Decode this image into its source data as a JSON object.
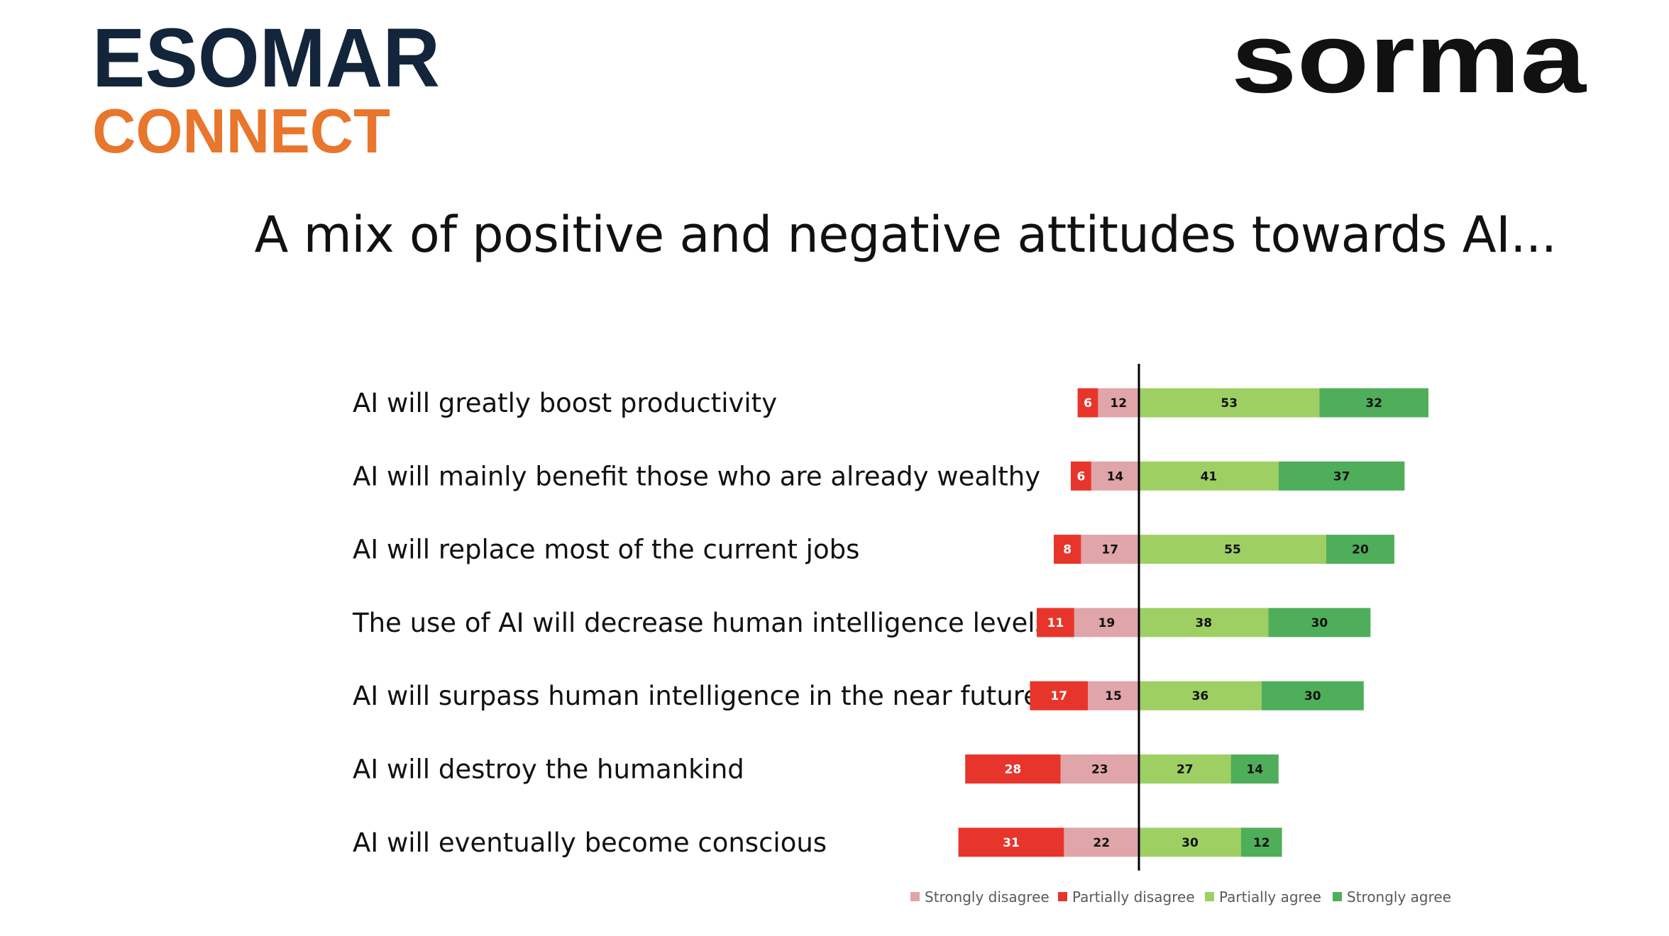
{
  "logos": {
    "left_line1": "ESOMAR",
    "left_line2": "CONNECT",
    "right": "sorma",
    "brand_navy": "#13253a",
    "brand_orange": "#e8762c"
  },
  "chart_data": {
    "type": "bar",
    "subtype": "diverging-stacked-horizontal",
    "title": "A mix of positive and negative attitudes towards AI...",
    "categories": [
      "AI will greatly boost productivity",
      "AI will mainly benefit those who are already wealthy",
      "AI will replace most of the current jobs",
      "The use of AI will decrease human intelligence levels",
      "AI will surpass human intelligence in the near future",
      "AI will destroy the humankind",
      "AI will eventually become conscious"
    ],
    "series": [
      {
        "name": "Strongly disagree",
        "color": "#e0a5a9",
        "side": "negative",
        "values": [
          12,
          14,
          17,
          19,
          15,
          23,
          22
        ]
      },
      {
        "name": "Partially disagree",
        "color": "#e8352b",
        "side": "negative",
        "values": [
          6,
          6,
          8,
          11,
          17,
          28,
          31
        ]
      },
      {
        "name": "Partially agree",
        "color": "#9ecf63",
        "side": "positive",
        "values": [
          53,
          41,
          55,
          38,
          36,
          27,
          30
        ]
      },
      {
        "name": "Strongly agree",
        "color": "#4fae5a",
        "side": "positive",
        "values": [
          32,
          37,
          20,
          30,
          30,
          14,
          12
        ]
      }
    ],
    "legend_position": "bottom-right",
    "grid": false
  }
}
